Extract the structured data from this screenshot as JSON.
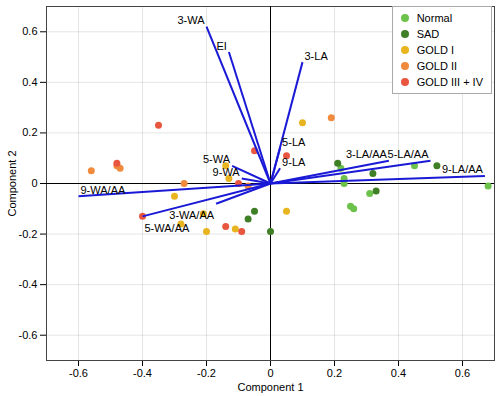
{
  "chart_data": {
    "type": "scatter",
    "xlabel": "Component 1",
    "ylabel": "Component 2",
    "xlim": [
      -0.7,
      0.7
    ],
    "ylim": [
      -0.7,
      0.7
    ],
    "xticks": [
      -0.6,
      -0.4,
      -0.2,
      0,
      0.2,
      0.4,
      0.6
    ],
    "yticks": [
      -0.6,
      -0.4,
      -0.2,
      0,
      0.2,
      0.4,
      0.6
    ],
    "grid": true,
    "legend": "upper right",
    "series": [
      {
        "name": "Normal",
        "color": "#6cc24a",
        "marker": "circle",
        "x": [
          0.68,
          0.22,
          0.23,
          0.23,
          0.25,
          0.26,
          0.31,
          0.45
        ],
        "y": [
          -0.01,
          0.06,
          0.02,
          0.0,
          -0.09,
          -0.1,
          -0.04,
          0.07
        ]
      },
      {
        "name": "SAD",
        "color": "#3f7f25",
        "marker": "circle",
        "x": [
          0.52,
          0.33,
          0.32,
          0.0,
          -0.05,
          -0.07,
          0.21
        ],
        "y": [
          0.07,
          -0.03,
          0.04,
          -0.19,
          -0.11,
          -0.14,
          0.08
        ]
      },
      {
        "name": "GOLD I",
        "color": "#e8b520",
        "marker": "circle",
        "x": [
          0.1,
          -0.14,
          -0.13,
          -0.2,
          -0.21,
          -0.28,
          -0.3,
          0.05,
          -0.11
        ],
        "y": [
          0.24,
          0.07,
          0.02,
          -0.19,
          -0.12,
          -0.16,
          -0.05,
          -0.11,
          -0.18
        ]
      },
      {
        "name": "GOLD II",
        "color": "#f08a3c",
        "marker": "circle",
        "x": [
          0.19,
          -0.56,
          -0.48,
          -0.47,
          -0.27,
          -0.07
        ],
        "y": [
          0.26,
          0.05,
          0.07,
          0.06,
          0.0,
          -0.01
        ]
      },
      {
        "name": "GOLD III + IV",
        "color": "#e85640",
        "marker": "circle",
        "x": [
          -0.35,
          -0.48,
          -0.4,
          -0.14,
          -0.09,
          -0.05,
          0.05,
          -0.1
        ],
        "y": [
          0.23,
          0.08,
          -0.13,
          -0.17,
          -0.19,
          0.13,
          0.11,
          0.0
        ]
      }
    ],
    "vectors": {
      "color": "#1a1ad6",
      "labels": [
        "3-WA",
        "EI",
        "3-LA",
        "5-LA",
        "9-LA",
        "5-WA",
        "9-WA",
        "3-LA/AA",
        "5-LA/AA",
        "9-LA/AA",
        "9-WA/AA",
        "5-WA/AA",
        "3-WA/AA"
      ],
      "x": [
        -0.2,
        -0.13,
        0.1,
        0.03,
        0.03,
        -0.12,
        -0.09,
        0.37,
        0.5,
        0.67,
        -0.6,
        -0.4,
        -0.17
      ],
      "y": [
        0.62,
        0.52,
        0.48,
        0.14,
        0.06,
        0.07,
        0.02,
        0.09,
        0.09,
        0.03,
        -0.05,
        -0.13,
        -0.08
      ]
    }
  }
}
